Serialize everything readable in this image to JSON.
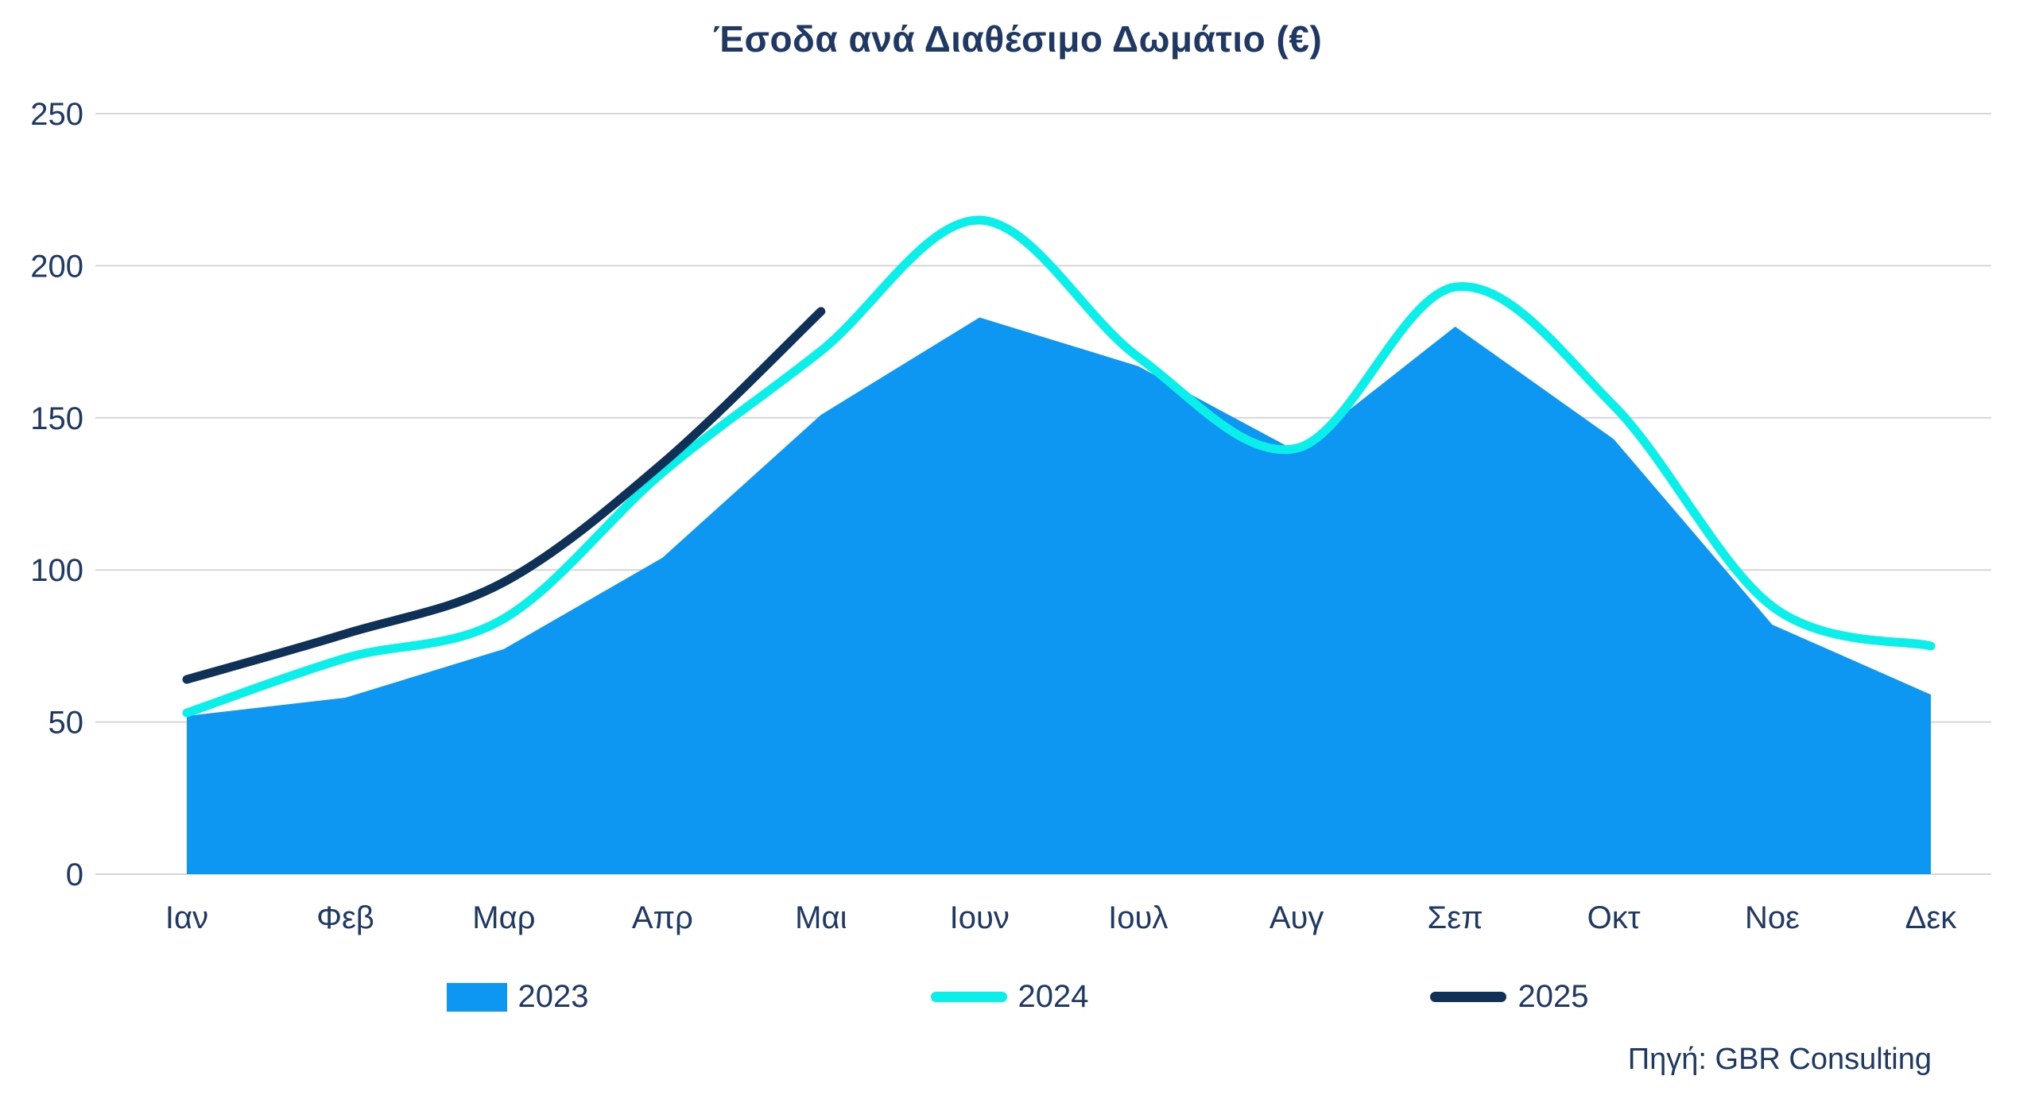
{
  "chart_data": {
    "type": "area+line",
    "title": "Έσοδα ανά Διαθέσιμο Δωμάτιο (€)",
    "source": "Πηγή: GBR Consulting",
    "categories": [
      "Ιαν",
      "Φεβ",
      "Μαρ",
      "Απρ",
      "Μαι",
      "Ιουν",
      "Ιουλ",
      "Αυγ",
      "Σεπ",
      "Οκτ",
      "Νοε",
      "Δεκ"
    ],
    "yticks": [
      0,
      50,
      100,
      150,
      200,
      250
    ],
    "ylim": [
      0,
      250
    ],
    "grid": "horizontal",
    "legend_position": "bottom",
    "colors": {
      "text": "#1F3864",
      "gridline": "#D6D6D6",
      "background": "#FFFFFF"
    },
    "series": [
      {
        "name": "2023",
        "type": "area",
        "smooth": false,
        "color": "#0D96F2",
        "values": [
          52,
          58,
          74,
          104,
          151,
          183,
          167,
          139,
          180,
          143,
          82,
          59
        ]
      },
      {
        "name": "2024",
        "type": "line",
        "smooth": true,
        "color": "#0AEFEA",
        "values": [
          53,
          71,
          84,
          132,
          172,
          215,
          170,
          140,
          193,
          154,
          88,
          75
        ]
      },
      {
        "name": "2025",
        "type": "line",
        "smooth": true,
        "color": "#0F3057",
        "values": [
          64,
          79,
          96,
          135,
          185
        ]
      }
    ]
  }
}
